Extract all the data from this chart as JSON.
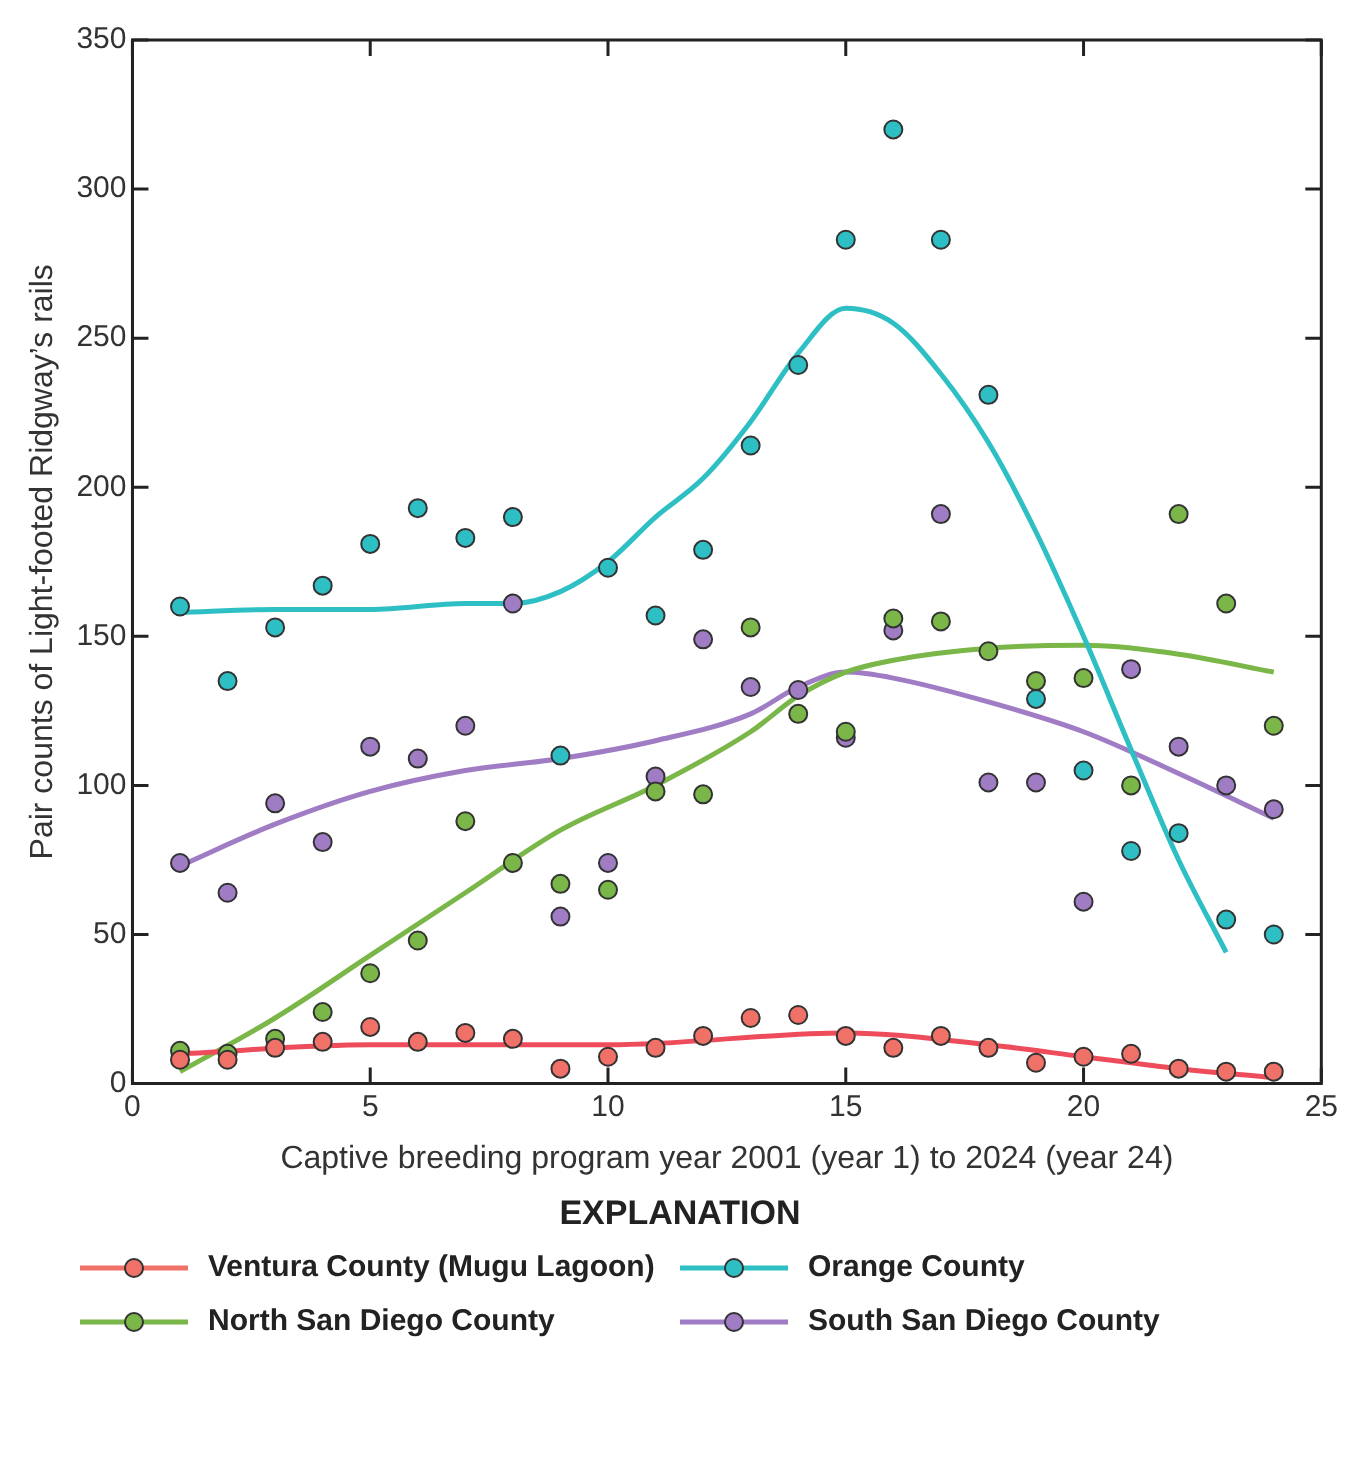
{
  "chart_data": {
    "type": "scatter",
    "xlabel": "Captive breeding program year 2001 (year 1) to 2024 (year 24)",
    "ylabel": "Pair counts of Light-footed Ridgway’s rails",
    "legend_title": "EXPLANATION",
    "legend": "bottom",
    "grid": false,
    "marker": "circle",
    "x": [
      1,
      2,
      3,
      4,
      5,
      6,
      7,
      8,
      9,
      10,
      11,
      12,
      13,
      14,
      15,
      16,
      17,
      18,
      19,
      20,
      21,
      22,
      23,
      24
    ],
    "xlim": [
      0,
      25
    ],
    "xticks": [
      0,
      5,
      10,
      15,
      20,
      25
    ],
    "ylim": [
      0,
      350
    ],
    "yticks": [
      0,
      50,
      100,
      150,
      200,
      250,
      300,
      350
    ],
    "series": [
      {
        "name": "Ventura County (Mugu Lagoon)",
        "color": "#f07167",
        "values": [
          8,
          8,
          12,
          14,
          19,
          14,
          17,
          15,
          5,
          9,
          12,
          16,
          22,
          23,
          16,
          12,
          16,
          12,
          7,
          9,
          10,
          5,
          4,
          4
        ]
      },
      {
        "name": "Orange County",
        "color": "#2ebfc4",
        "values": [
          160,
          135,
          153,
          167,
          181,
          193,
          183,
          190,
          110,
          173,
          157,
          179,
          214,
          241,
          283,
          320,
          283,
          231,
          129,
          105,
          78,
          84,
          55,
          50
        ]
      },
      {
        "name": "North San Diego County",
        "color": "#7ab648",
        "values": [
          11,
          10,
          15,
          24,
          37,
          48,
          88,
          74,
          67,
          65,
          98,
          97,
          153,
          124,
          118,
          156,
          155,
          145,
          135,
          136,
          100,
          191,
          161,
          120
        ]
      },
      {
        "name": "South San Diego County",
        "color": "#a07cc5",
        "values": [
          74,
          64,
          94,
          81,
          113,
          109,
          120,
          161,
          56,
          74,
          103,
          149,
          133,
          132,
          116,
          152,
          191,
          101,
          101,
          61,
          139,
          113,
          100,
          92
        ]
      },
      {
        "type": "line",
        "marker": "none",
        "color": "#ee4c5a",
        "x": [
          1,
          5,
          10,
          15,
          18,
          20,
          22,
          24
        ],
        "values": [
          10,
          13,
          13,
          17,
          13,
          9,
          5,
          2
        ]
      },
      {
        "type": "line",
        "marker": "none",
        "color": "#2ebfc4",
        "x": [
          1,
          3,
          5,
          7,
          8,
          9,
          10,
          11,
          12,
          13,
          14,
          15,
          16,
          17,
          18,
          19,
          20,
          21,
          22,
          23
        ],
        "values": [
          158,
          159,
          159,
          161,
          161,
          165,
          175,
          190,
          203,
          222,
          245,
          260,
          255,
          238,
          215,
          185,
          150,
          112,
          75,
          44
        ]
      },
      {
        "type": "line",
        "marker": "none",
        "color": "#7ab648",
        "x": [
          1,
          3,
          5,
          7,
          9,
          11,
          13,
          14,
          15,
          16,
          18,
          20,
          22,
          24
        ],
        "values": [
          4,
          22,
          43,
          64,
          85,
          100,
          118,
          130,
          138,
          142,
          146,
          147,
          144,
          138
        ]
      },
      {
        "type": "line",
        "marker": "none",
        "color": "#a07cc5",
        "x": [
          1,
          3,
          5,
          7,
          9,
          11,
          13,
          14,
          15,
          16,
          18,
          20,
          22,
          24
        ],
        "values": [
          73,
          87,
          98,
          105,
          109,
          115,
          124,
          133,
          138,
          136,
          128,
          118,
          104,
          89
        ]
      }
    ]
  }
}
